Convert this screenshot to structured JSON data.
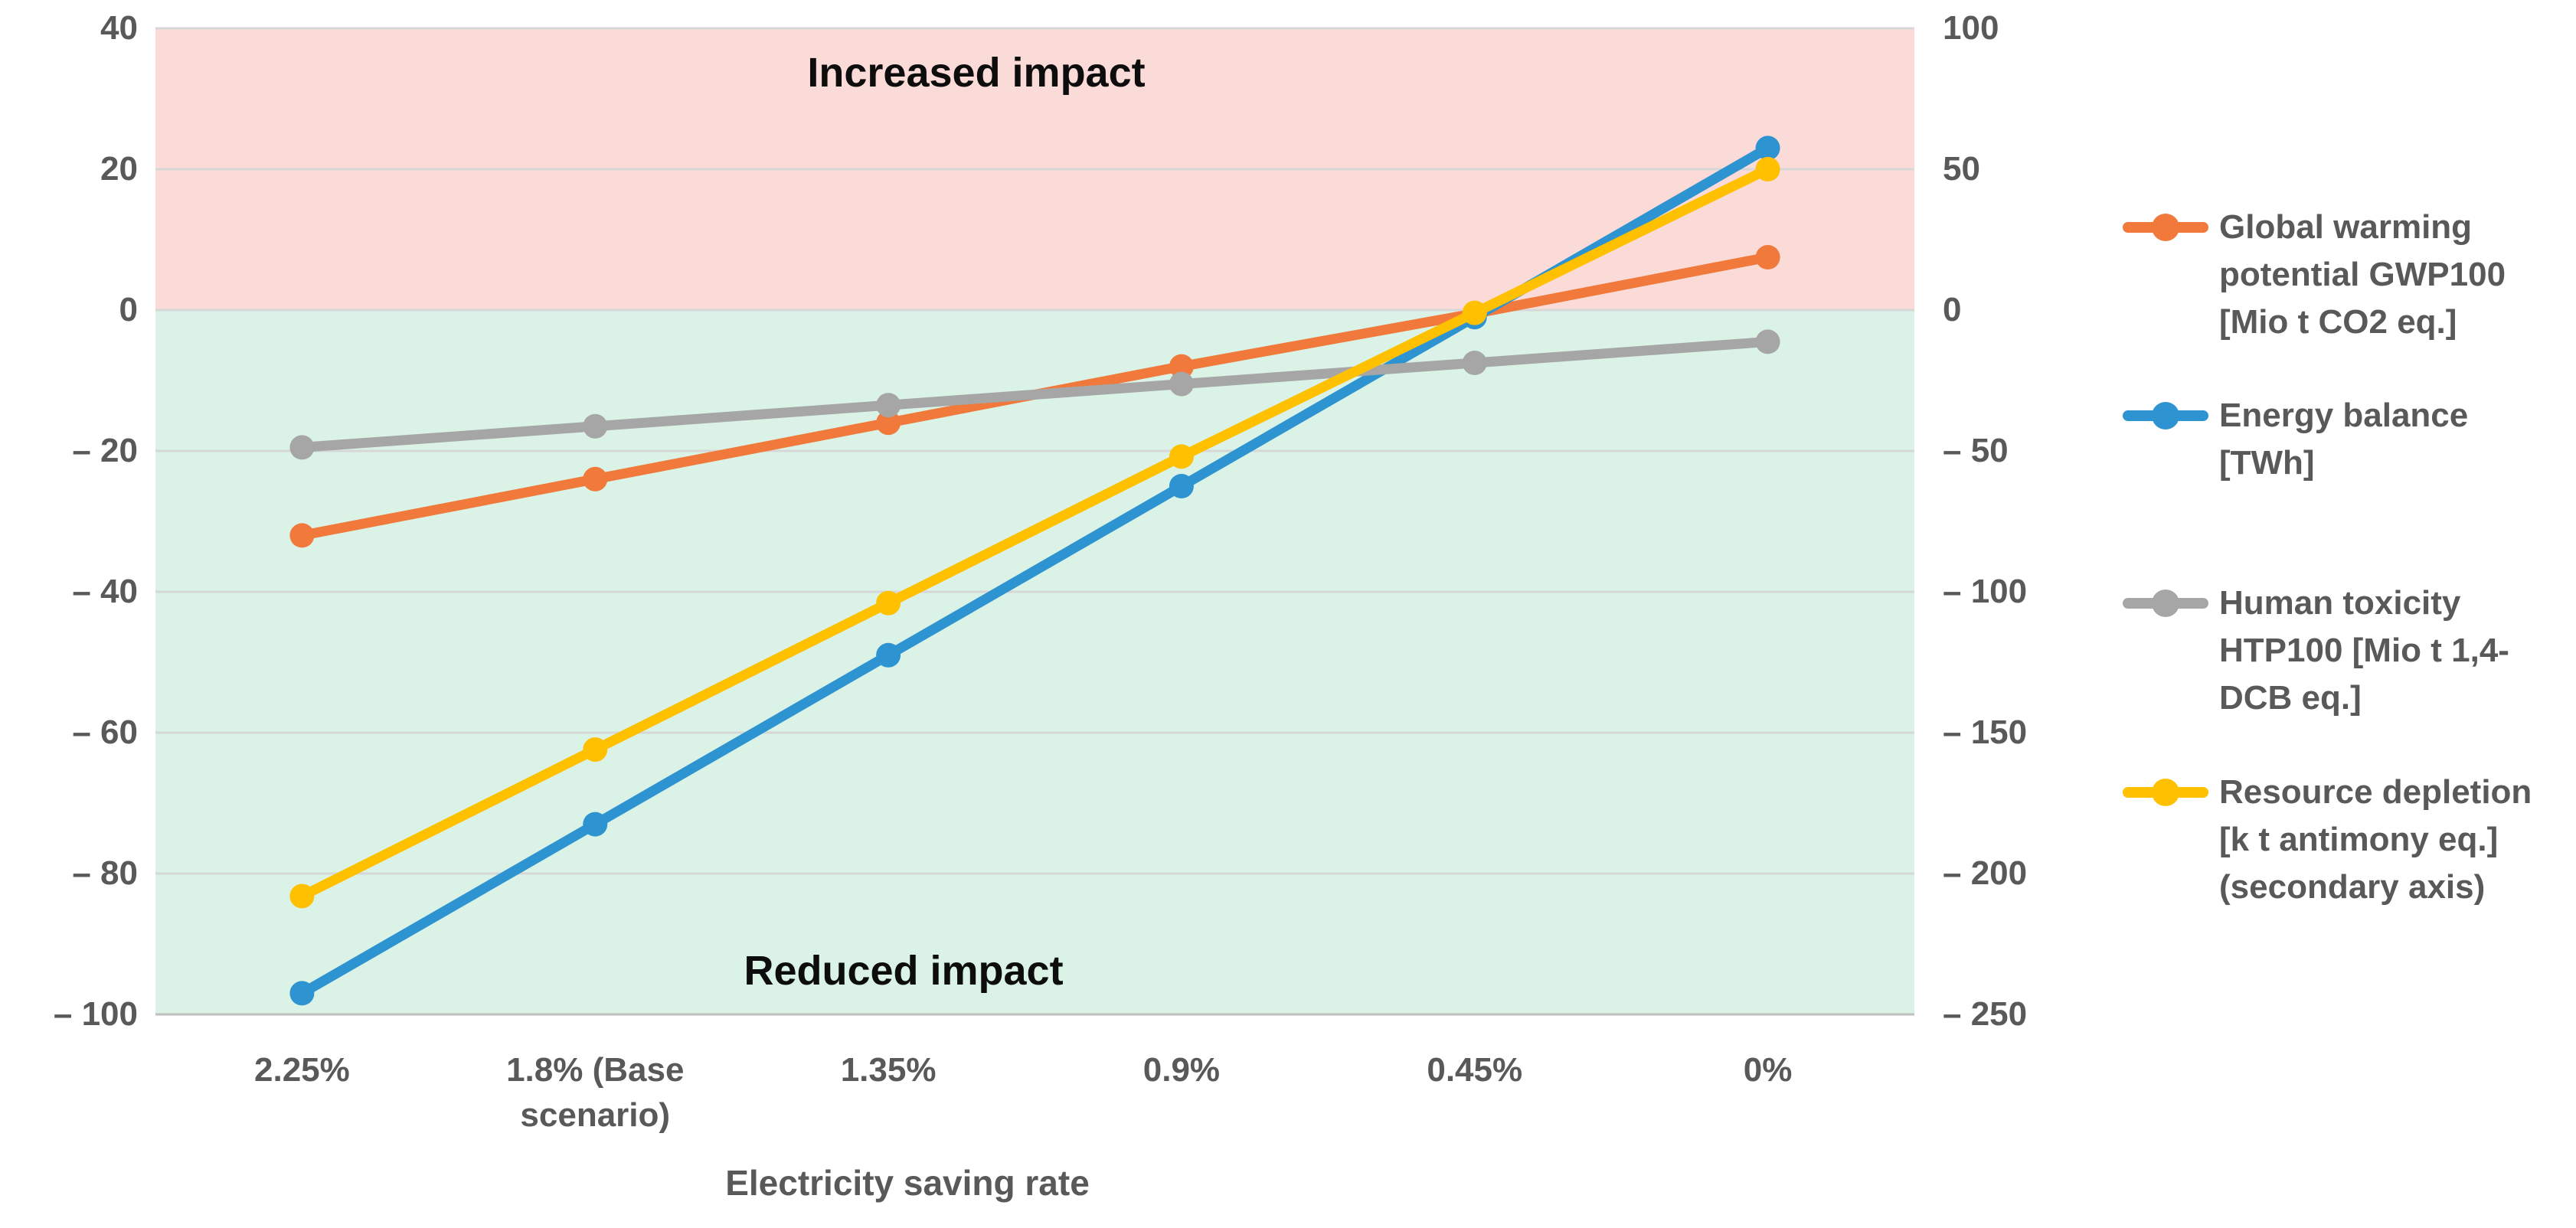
{
  "chart_data": {
    "type": "line",
    "title": "",
    "xlabel": "Electricity saving rate",
    "categories": [
      "2.25%",
      "1.8% (Base scenario)",
      "1.35%",
      "0.9%",
      "0.45%",
      "0%"
    ],
    "series": [
      {
        "name": "Global warming potential GWP100 [Mio t CO2 eq.]",
        "legend_label": "Global warming\npotential GWP100\n[Mio t CO2 eq.]",
        "color": "#F0793B",
        "axis": "left",
        "values": [
          -32,
          -24,
          -16,
          -8,
          -0.5,
          7.5
        ]
      },
      {
        "name": "Energy balance [TWh]",
        "legend_label": "Energy balance\n[TWh]",
        "color": "#2E93D1",
        "axis": "left",
        "values": [
          -97,
          -73,
          -49,
          -25,
          -1,
          23
        ]
      },
      {
        "name": "Human toxicity HTP100 [Mio t 1,4-DCB eq.]",
        "legend_label": "Human toxicity\nHTP100 [Mio t 1,4-\nDCB eq.]",
        "color": "#A6A6A6",
        "axis": "left",
        "values": [
          -19.5,
          -16.5,
          -13.5,
          -10.5,
          -7.5,
          -4.5
        ]
      },
      {
        "name": "Resource depletion [k t antimony eq.] (secondary axis)",
        "legend_label": "Resource depletion\n[k t antimony eq.]\n(secondary axis)",
        "color": "#FFC000",
        "axis": "right",
        "values": [
          -208,
          -156,
          -104,
          -52,
          -1,
          50
        ]
      }
    ],
    "left_axis": {
      "min": -100,
      "max": 40,
      "tick_step": 20,
      "tick_values": [
        40,
        20,
        0,
        -20,
        -40,
        -60,
        -80,
        -100
      ],
      "tick_labels": [
        "40",
        "20",
        "0",
        "– 20",
        "– 40",
        "– 60",
        "– 80",
        "– 100"
      ]
    },
    "right_axis": {
      "min": -250,
      "max": 100,
      "tick_step": 50,
      "tick_values": [
        100,
        50,
        0,
        -50,
        -100,
        -150,
        -200,
        -250
      ],
      "tick_labels": [
        "100",
        "50",
        "0",
        "– 50",
        "– 100",
        "– 150",
        "– 200",
        "– 250"
      ]
    },
    "annotations": {
      "increased": "Increased impact",
      "reduced": "Reduced impact"
    },
    "regions": {
      "increased_color": "#FBDBD8",
      "reduced_color": "#DAF3E6"
    },
    "grid": true,
    "gridline_color": "#D7D7D7",
    "axis_line_color": "#C0C0C0",
    "legend_position": "right"
  }
}
